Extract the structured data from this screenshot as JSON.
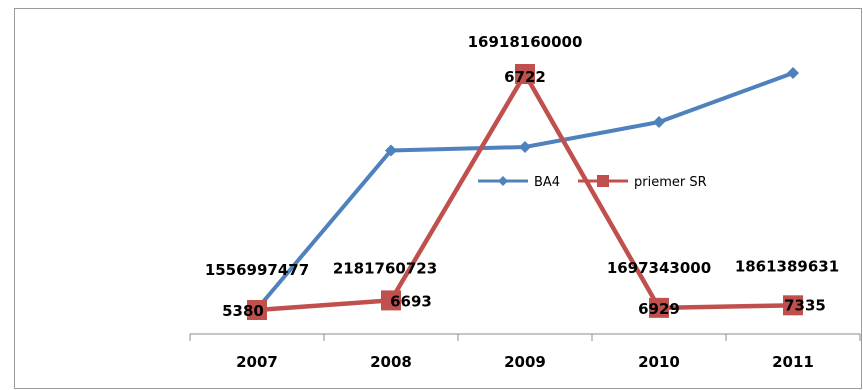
{
  "chart_data": {
    "type": "line",
    "categories": [
      "2007",
      "2008",
      "2009",
      "2010",
      "2011"
    ],
    "series": [
      {
        "name": "BA4",
        "color": "#4f81bd",
        "values": [
          5380,
          6693,
          6722,
          6929,
          7335
        ]
      },
      {
        "name": "priemer SR",
        "color": "#c0504d",
        "values": [
          1556997477,
          2181760723,
          16918160000,
          1697343000,
          1861389631
        ]
      }
    ],
    "data_labels": {
      "BA4": [
        "5380",
        "6693",
        "6722",
        "6929",
        "7335"
      ],
      "priemer SR": [
        "1556997477",
        "2181760723",
        "16918160000",
        "1697343000",
        "1861389631"
      ]
    },
    "legend_position": "center",
    "grid": false,
    "title": "",
    "xlabel": "",
    "ylabel": ""
  }
}
